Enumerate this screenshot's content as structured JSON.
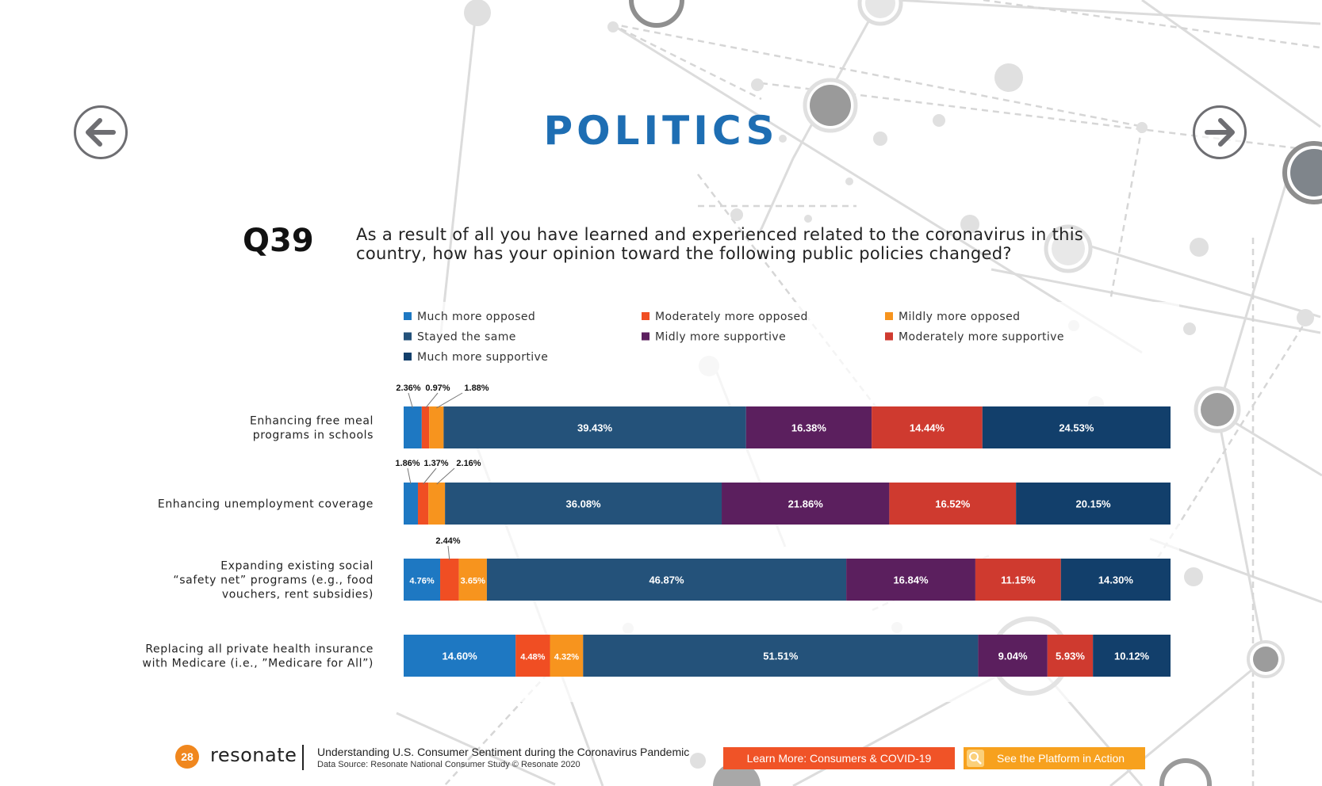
{
  "header": {
    "title": "POLITICS",
    "prev_icon": "arrow-left-icon",
    "next_icon": "arrow-right-icon"
  },
  "question": {
    "number": "Q39",
    "text": "As a result of all you have learned and experienced related to the coronavirus in this country, how has your opinion toward the following public policies changed?"
  },
  "chart_data": {
    "type": "bar",
    "orientation": "horizontal",
    "stacked": true,
    "percent_stacked": true,
    "legend_position": "top",
    "grid": false,
    "xlim": [
      0,
      100
    ],
    "categories": [
      [
        "Enhancing free meal",
        "programs in schools"
      ],
      [
        "Enhancing unemployment coverage"
      ],
      [
        "Expanding existing social",
        "“safety net” programs (e.g., food",
        "vouchers, rent subsidies)"
      ],
      [
        "Replacing all private health insurance",
        "with Medicare (i.e., ”Medicare for All”)"
      ]
    ],
    "series": [
      {
        "name": "Much more opposed",
        "color": "#1e78c2",
        "values": [
          2.36,
          1.86,
          4.76,
          14.6
        ],
        "labels": [
          "2.36%",
          "1.86%",
          "4.76%",
          "14.60%"
        ]
      },
      {
        "name": "Moderately more opposed",
        "color": "#f04e23",
        "values": [
          0.97,
          1.37,
          2.44,
          4.48
        ],
        "labels": [
          "0.97%",
          "1.37%",
          "2.44%",
          "4.48%"
        ]
      },
      {
        "name": "Mildly more opposed",
        "color": "#f7941e",
        "values": [
          1.88,
          2.16,
          3.65,
          4.32
        ],
        "labels": [
          "1.88%",
          "2.16%",
          "3.65%",
          "4.32%"
        ]
      },
      {
        "name": "Stayed the same",
        "color": "#24527a",
        "values": [
          39.43,
          36.08,
          46.87,
          51.51
        ],
        "labels": [
          "39.43%",
          "36.08%",
          "46.87%",
          "51.51%"
        ]
      },
      {
        "name": "Midly more supportive",
        "color": "#5b1f5e",
        "values": [
          16.38,
          21.86,
          16.84,
          9.04
        ],
        "labels": [
          "16.38%",
          "21.86%",
          "16.84%",
          "9.04%"
        ]
      },
      {
        "name": "Moderately more supportive",
        "color": "#cf3a2f",
        "values": [
          14.44,
          16.52,
          11.15,
          5.93
        ],
        "labels": [
          "14.44%",
          "16.52%",
          "11.15%",
          "5.93%"
        ]
      },
      {
        "name": "Much more supportive",
        "color": "#123f6b",
        "values": [
          24.53,
          20.15,
          14.3,
          10.12
        ],
        "labels": [
          "24.53%",
          "20.15%",
          "14.30%",
          "10.12%"
        ]
      }
    ]
  },
  "footer": {
    "page_number": "28",
    "logo": "resonate",
    "title": "Understanding U.S. Consumer Sentiment during the Coronavirus Pandemic",
    "source": "Data Source: Resonate National Consumer Study © Resonate 2020",
    "learn_more_label": "Learn More: Consumers & COVID-19",
    "platform_label": "See the Platform in Action",
    "platform_icon": "magnifier-icon"
  },
  "colors": {
    "title_blue": "#1e6eb3",
    "learn_button": "#f05327",
    "platform_button": "#f7a11e",
    "page_badge": "#f0871e"
  }
}
